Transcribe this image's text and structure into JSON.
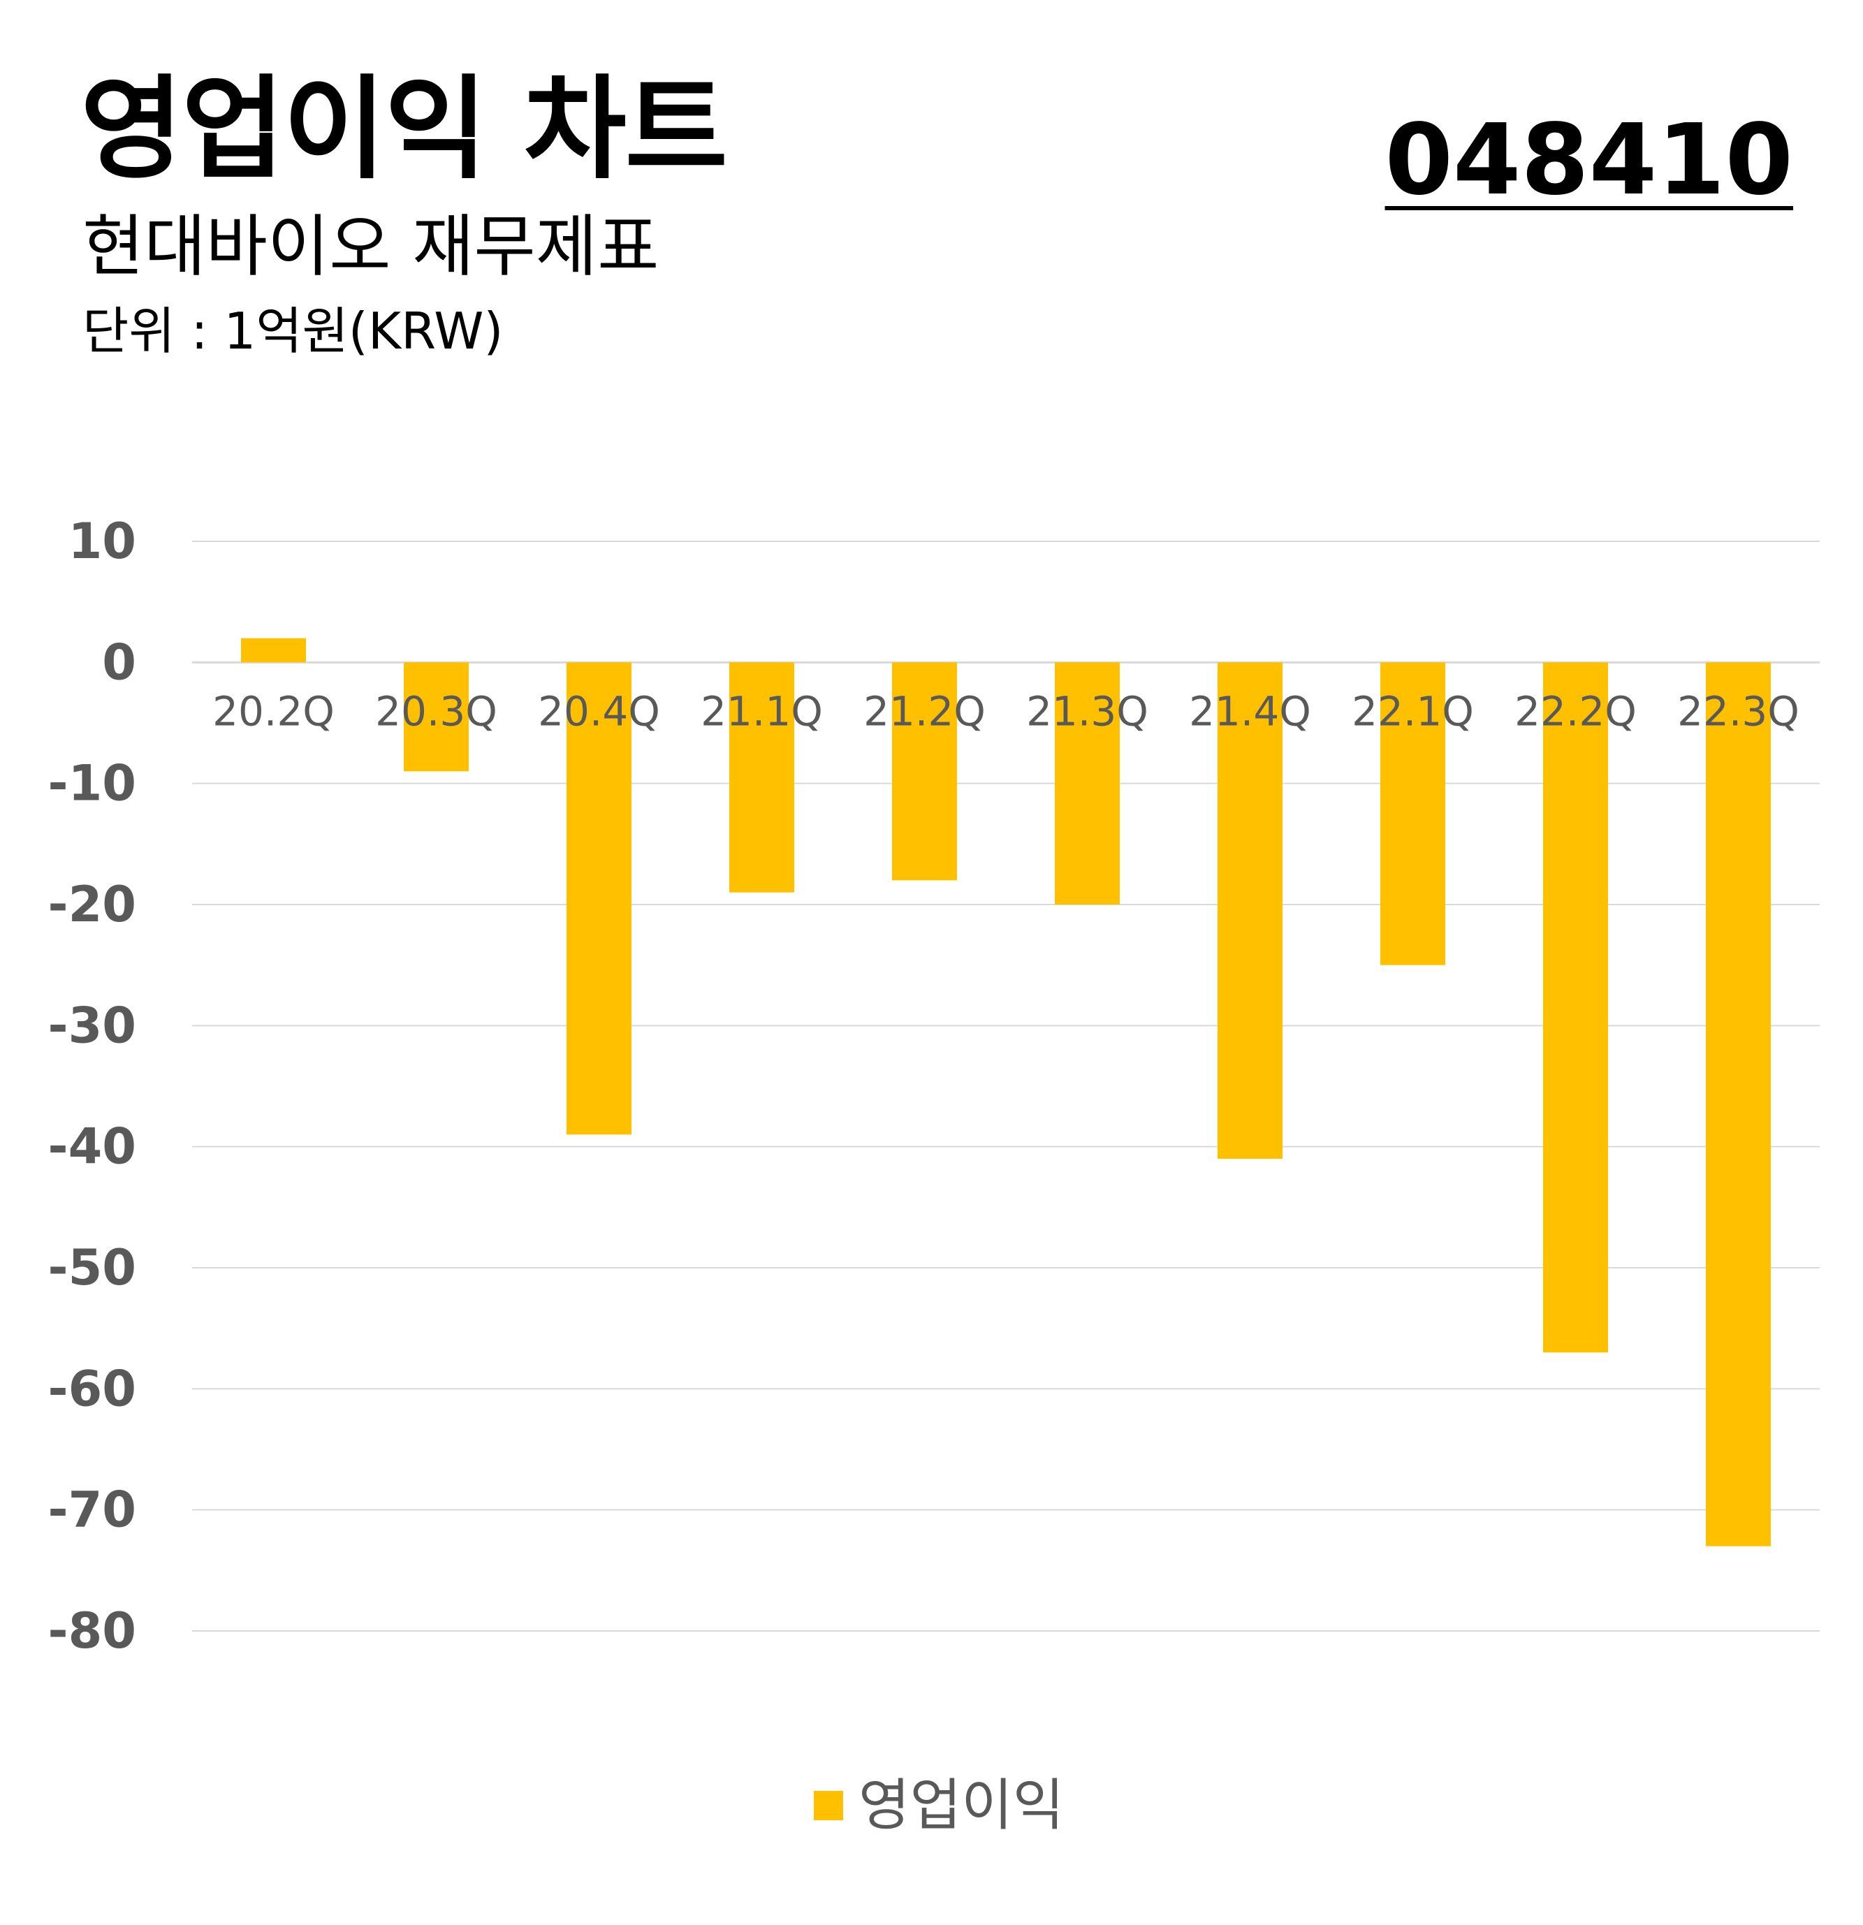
{
  "header": {
    "title": "영업이익 차트",
    "subtitle": "현대바이오 재무제표",
    "unit": "단위 : 1억원(KRW)",
    "code": "048410"
  },
  "colors": {
    "bar": "#FFC000",
    "grid": "#D9D9D9",
    "axis_text": "#595959"
  },
  "legend": {
    "label": "영업이익"
  },
  "chart_data": {
    "type": "bar",
    "categories": [
      "20.2Q",
      "20.3Q",
      "20.4Q",
      "21.1Q",
      "21.2Q",
      "21.3Q",
      "21.4Q",
      "22.1Q",
      "22.2Q",
      "22.3Q"
    ],
    "series": [
      {
        "name": "영업이익",
        "values": [
          2,
          -9,
          -39,
          -19,
          -18,
          -20,
          -41,
          -25,
          -57,
          -73
        ]
      }
    ],
    "yticks": [
      10,
      0,
      -10,
      -20,
      -30,
      -40,
      -50,
      -60,
      -70,
      -80
    ],
    "ylim": [
      -80,
      10
    ],
    "grid": true,
    "legend_position": "bottom"
  }
}
